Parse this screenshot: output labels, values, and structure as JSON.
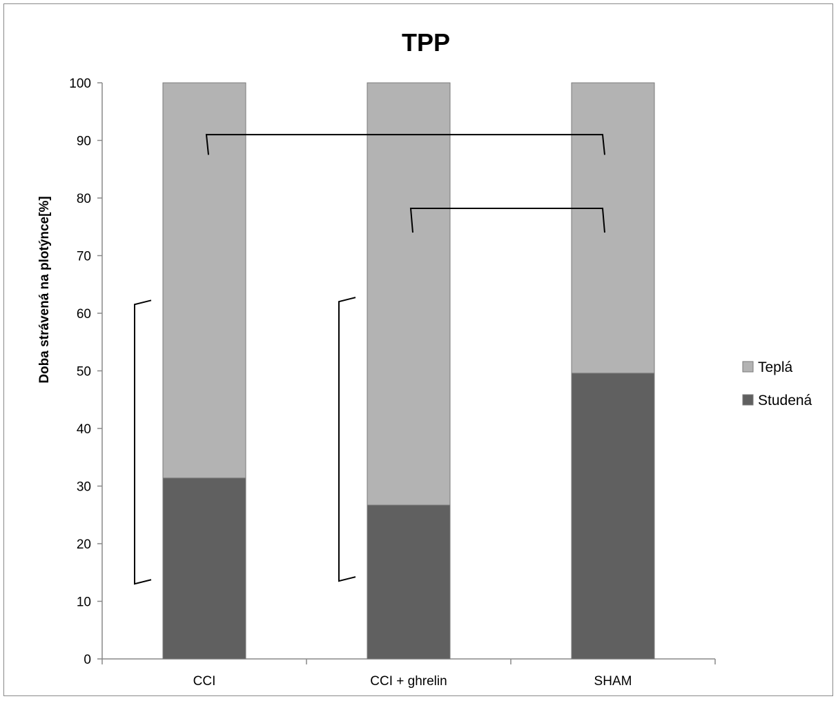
{
  "chart_data": {
    "type": "bar",
    "stacked": true,
    "title": "TPP",
    "xlabel": "",
    "ylabel": "Doba strávená na plotýnce[%]",
    "ylim": [
      0,
      100
    ],
    "yticks": [
      0,
      10,
      20,
      30,
      40,
      50,
      60,
      70,
      80,
      90,
      100
    ],
    "categories": [
      "CCI",
      "CCI + ghrelin",
      "SHAM"
    ],
    "series": [
      {
        "name": "Studená",
        "values": [
          31.4,
          26.7,
          49.6
        ],
        "color": "#606060"
      },
      {
        "name": "Teplá",
        "values": [
          68.6,
          73.3,
          50.4
        ],
        "color": "#b3b3b3"
      }
    ],
    "legend": {
      "position": "right",
      "order": [
        "Teplá",
        "Studená"
      ]
    },
    "grid": false,
    "significance_brackets": [
      {
        "type": "horizontal",
        "from": "CCI",
        "to": "SHAM",
        "y_top": 91,
        "y_bottom": 87.5
      },
      {
        "type": "horizontal",
        "from": "CCI + ghrelin",
        "to": "SHAM",
        "y_top": 78.2,
        "y_bottom": 74
      },
      {
        "type": "vertical",
        "category": "CCI",
        "y_top": 62,
        "y_bottom": 13.5
      },
      {
        "type": "vertical",
        "category": "CCI + ghrelin",
        "y_top": 62.5,
        "y_bottom": 14
      }
    ]
  }
}
